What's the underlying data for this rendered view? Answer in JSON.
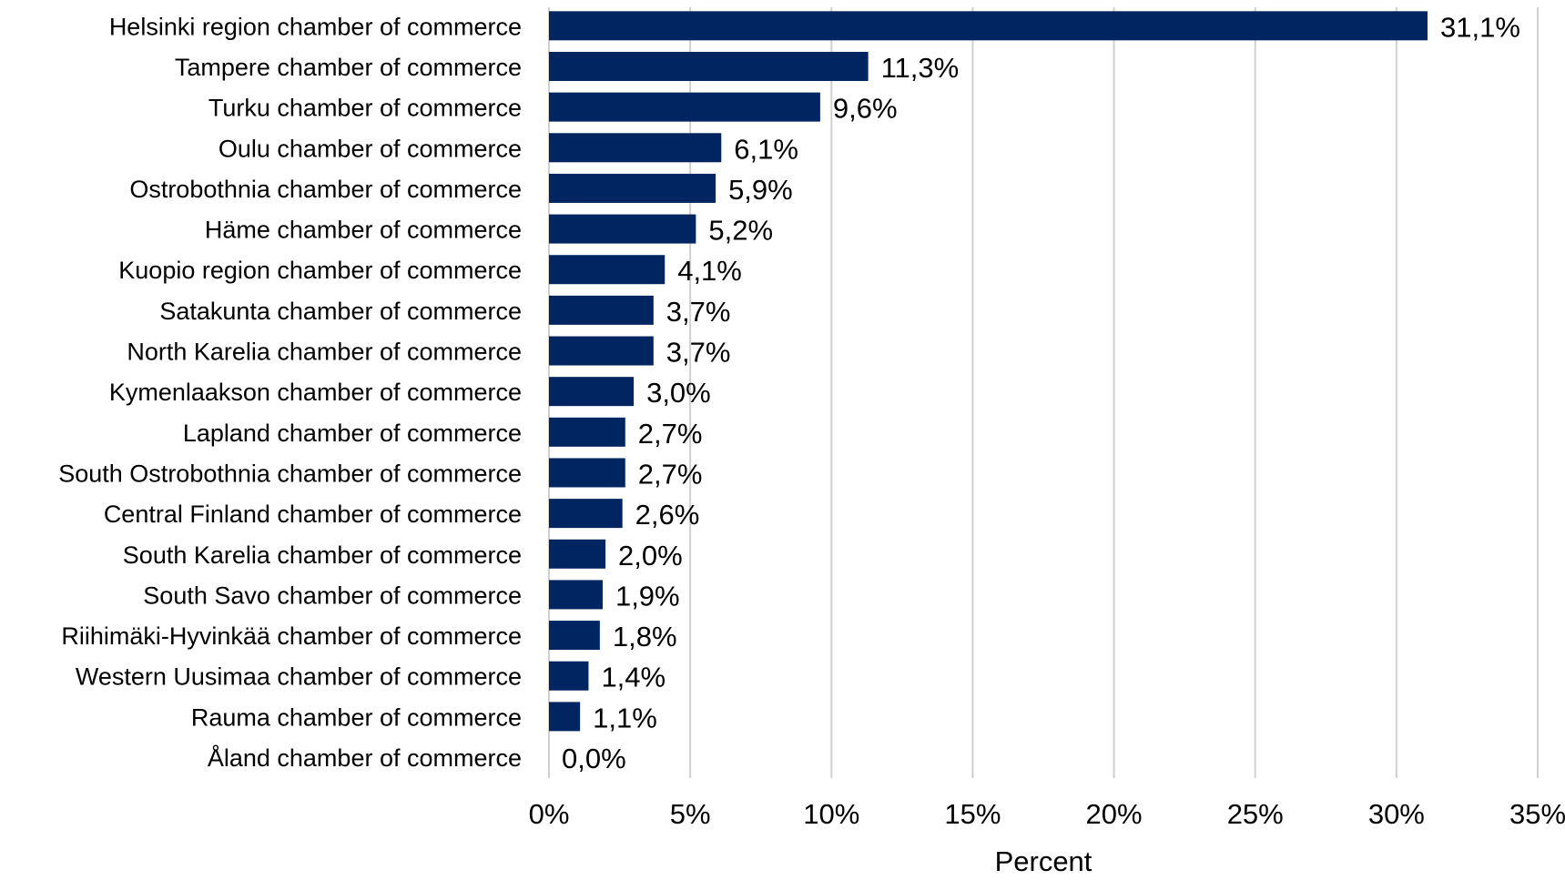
{
  "chart_data": {
    "type": "bar",
    "orientation": "horizontal",
    "categories": [
      "Helsinki region chamber of commerce",
      "Tampere chamber of commerce",
      "Turku chamber of commerce",
      "Oulu chamber of commerce",
      "Ostrobothnia chamber of commerce",
      "Häme chamber of commerce",
      "Kuopio region chamber of commerce",
      "Satakunta chamber of commerce",
      "North Karelia chamber of commerce",
      "Kymenlaakson chamber of commerce",
      "Lapland chamber of commerce",
      "South Ostrobothnia chamber of commerce",
      "Central Finland chamber of commerce",
      "South Karelia chamber of commerce",
      "South Savo chamber of commerce",
      "Riihimäki-Hyvinkää chamber of commerce",
      "Western Uusimaa chamber of commerce",
      "Rauma chamber of commerce",
      "Åland chamber of commerce"
    ],
    "values": [
      31.1,
      11.3,
      9.6,
      6.1,
      5.9,
      5.2,
      4.1,
      3.7,
      3.7,
      3.0,
      2.7,
      2.7,
      2.6,
      2.0,
      1.9,
      1.8,
      1.4,
      1.1,
      0.0
    ],
    "data_labels": [
      "31,1%",
      "11,3%",
      "9,6%",
      "6,1%",
      "5,9%",
      "5,2%",
      "4,1%",
      "3,7%",
      "3,7%",
      "3,0%",
      "2,7%",
      "2,7%",
      "2,6%",
      "2,0%",
      "1,9%",
      "1,8%",
      "1,4%",
      "1,1%",
      "0,0%"
    ],
    "x_ticks": [
      0,
      5,
      10,
      15,
      20,
      25,
      30,
      35
    ],
    "x_tick_labels": [
      "0%",
      "5%",
      "10%",
      "15%",
      "20%",
      "25%",
      "30%",
      "35%"
    ],
    "xlim": [
      0,
      35
    ],
    "title": "",
    "xlabel": "Percent",
    "ylabel": "",
    "grid": "vertical",
    "legend": "none",
    "bar_color": "#002561",
    "grid_color": "#d0d0d0"
  }
}
